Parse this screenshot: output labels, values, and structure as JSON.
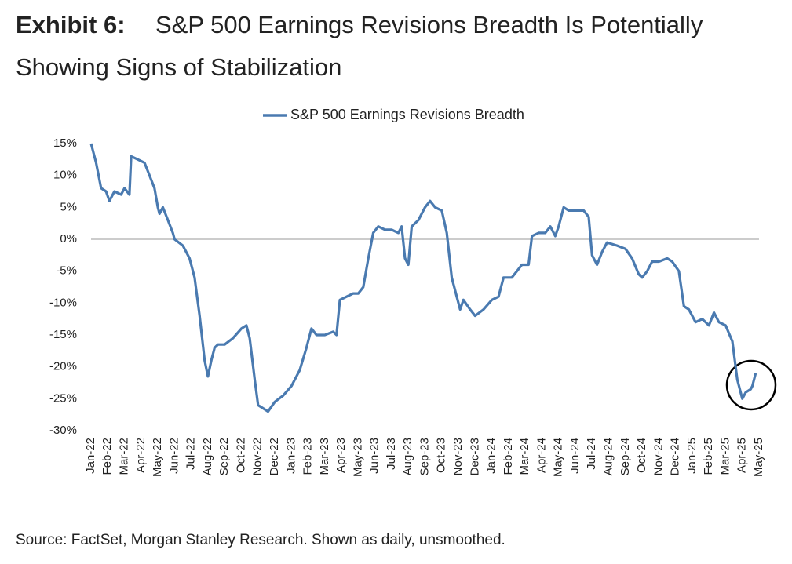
{
  "chart_data": {
    "type": "line",
    "title_prefix": "Exhibit 6:",
    "title": "S&P 500 Earnings Revisions Breadth Is Potentially Showing Signs of Stabilization",
    "source": "Source: FactSet, Morgan Stanley Research. Shown as daily, unsmoothed.",
    "x": [
      0,
      0.3,
      0.6,
      0.9,
      1.1,
      1.4,
      1.8,
      2.0,
      2.3,
      2.4,
      2.8,
      3.2,
      3.5,
      3.8,
      4.0,
      4.1,
      4.3,
      4.6,
      4.9,
      5.0,
      5.5,
      5.9,
      6.2,
      6.5,
      6.8,
      7.0,
      7.2,
      7.4,
      7.6,
      8.0,
      8.5,
      9.0,
      9.3,
      9.5,
      9.8,
      10.0,
      10.3,
      10.6,
      11.0,
      11.5,
      12.0,
      12.5,
      12.9,
      13.2,
      13.5,
      14.0,
      14.5,
      14.7,
      14.9,
      15.3,
      15.7,
      16.0,
      16.3,
      16.6,
      16.9,
      17.2,
      17.6,
      18.0,
      18.4,
      18.6,
      18.8,
      19.0,
      19.2,
      19.6,
      20.0,
      20.3,
      20.6,
      21.0,
      21.3,
      21.6,
      21.9,
      22.1,
      22.3,
      22.7,
      23.0,
      23.5,
      24.0,
      24.4,
      24.7,
      25.2,
      25.5,
      25.8,
      26.2,
      26.4,
      26.8,
      27.2,
      27.5,
      27.8,
      28.0,
      28.3,
      28.6,
      29.0,
      29.5,
      29.8,
      30.0,
      30.3,
      30.6,
      30.9,
      31.5,
      32.0,
      32.4,
      32.8,
      33.0,
      33.3,
      33.6,
      34.0,
      34.5,
      34.8,
      35.2,
      35.5,
      35.8,
      36.2,
      36.6,
      37.0,
      37.3,
      37.6,
      38.0,
      38.4,
      38.7,
      39.0,
      39.2,
      39.5,
      39.6,
      39.8
    ],
    "series": [
      {
        "name": "S&P 500 Earnings Revisions Breadth",
        "color": "#4a7ab0",
        "values": [
          15,
          12,
          8,
          7.5,
          6,
          7.5,
          7,
          8,
          7,
          13,
          12.5,
          12,
          10,
          8,
          5,
          4,
          5,
          3,
          1,
          0,
          -1,
          -3,
          -6,
          -12,
          -19,
          -21.5,
          -19,
          -17,
          -16.5,
          -16.5,
          -15.5,
          -14,
          -13.5,
          -15.5,
          -22,
          -26,
          -26.5,
          -27,
          -25.5,
          -24.5,
          -23,
          -20.5,
          -17,
          -14,
          -15,
          -15,
          -14.5,
          -15,
          -9.5,
          -9,
          -8.5,
          -8.5,
          -7.5,
          -3,
          1,
          2,
          1.5,
          1.5,
          1,
          2,
          -3,
          -4,
          2,
          3,
          5,
          6,
          5,
          4.5,
          1,
          -6,
          -9,
          -11,
          -9.5,
          -11,
          -12,
          -11,
          -9.5,
          -9,
          -6,
          -6,
          -5,
          -4,
          -4,
          0.5,
          1,
          1,
          2,
          0.5,
          2,
          5,
          4.5,
          4.5,
          4.5,
          3.5,
          -2.5,
          -4,
          -2,
          -0.5,
          -1,
          -1.5,
          -3,
          -5.5,
          -6,
          -5,
          -3.5,
          -3.5,
          -3,
          -3.5,
          -5,
          -10.5,
          -11,
          -13,
          -12.5,
          -13.5,
          -11.5,
          -13,
          -13.5,
          -16,
          -22,
          -25,
          -24,
          -23.5,
          -23,
          -21
        ]
      }
    ],
    "xlim": [
      0,
      40
    ],
    "xticks": [
      {
        "value": 0,
        "label": "Jan-22"
      },
      {
        "value": 1,
        "label": "Feb-22"
      },
      {
        "value": 2,
        "label": "Mar-22"
      },
      {
        "value": 3,
        "label": "Apr-22"
      },
      {
        "value": 4,
        "label": "May-22"
      },
      {
        "value": 5,
        "label": "Jun-22"
      },
      {
        "value": 6,
        "label": "Jul-22"
      },
      {
        "value": 7,
        "label": "Aug-22"
      },
      {
        "value": 8,
        "label": "Sep-22"
      },
      {
        "value": 9,
        "label": "Oct-22"
      },
      {
        "value": 10,
        "label": "Nov-22"
      },
      {
        "value": 11,
        "label": "Dec-22"
      },
      {
        "value": 12,
        "label": "Jan-23"
      },
      {
        "value": 13,
        "label": "Feb-23"
      },
      {
        "value": 14,
        "label": "Mar-23"
      },
      {
        "value": 15,
        "label": "Apr-23"
      },
      {
        "value": 16,
        "label": "May-23"
      },
      {
        "value": 17,
        "label": "Jun-23"
      },
      {
        "value": 18,
        "label": "Jul-23"
      },
      {
        "value": 19,
        "label": "Aug-23"
      },
      {
        "value": 20,
        "label": "Sep-23"
      },
      {
        "value": 21,
        "label": "Oct-23"
      },
      {
        "value": 22,
        "label": "Nov-23"
      },
      {
        "value": 23,
        "label": "Dec-23"
      },
      {
        "value": 24,
        "label": "Jan-24"
      },
      {
        "value": 25,
        "label": "Feb-24"
      },
      {
        "value": 26,
        "label": "Mar-24"
      },
      {
        "value": 27,
        "label": "Apr-24"
      },
      {
        "value": 28,
        "label": "May-24"
      },
      {
        "value": 29,
        "label": "Jun-24"
      },
      {
        "value": 30,
        "label": "Jul-24"
      },
      {
        "value": 31,
        "label": "Aug-24"
      },
      {
        "value": 32,
        "label": "Sep-24"
      },
      {
        "value": 33,
        "label": "Oct-24"
      },
      {
        "value": 34,
        "label": "Nov-24"
      },
      {
        "value": 35,
        "label": "Dec-24"
      },
      {
        "value": 36,
        "label": "Jan-25"
      },
      {
        "value": 37,
        "label": "Feb-25"
      },
      {
        "value": 38,
        "label": "Mar-25"
      },
      {
        "value": 39,
        "label": "Apr-25"
      },
      {
        "value": 40,
        "label": "May-25"
      }
    ],
    "ylim": [
      -30,
      15
    ],
    "yticks": [
      {
        "value": 15,
        "label": "15%"
      },
      {
        "value": 10,
        "label": "10%"
      },
      {
        "value": 5,
        "label": "5%"
      },
      {
        "value": 0,
        "label": "0%"
      },
      {
        "value": -5,
        "label": "-5%"
      },
      {
        "value": -10,
        "label": "-10%"
      },
      {
        "value": -15,
        "label": "-15%"
      },
      {
        "value": -20,
        "label": "-20%"
      },
      {
        "value": -25,
        "label": "-25%"
      },
      {
        "value": -30,
        "label": "-30%"
      }
    ],
    "hline": 0,
    "legend": "top"
  }
}
